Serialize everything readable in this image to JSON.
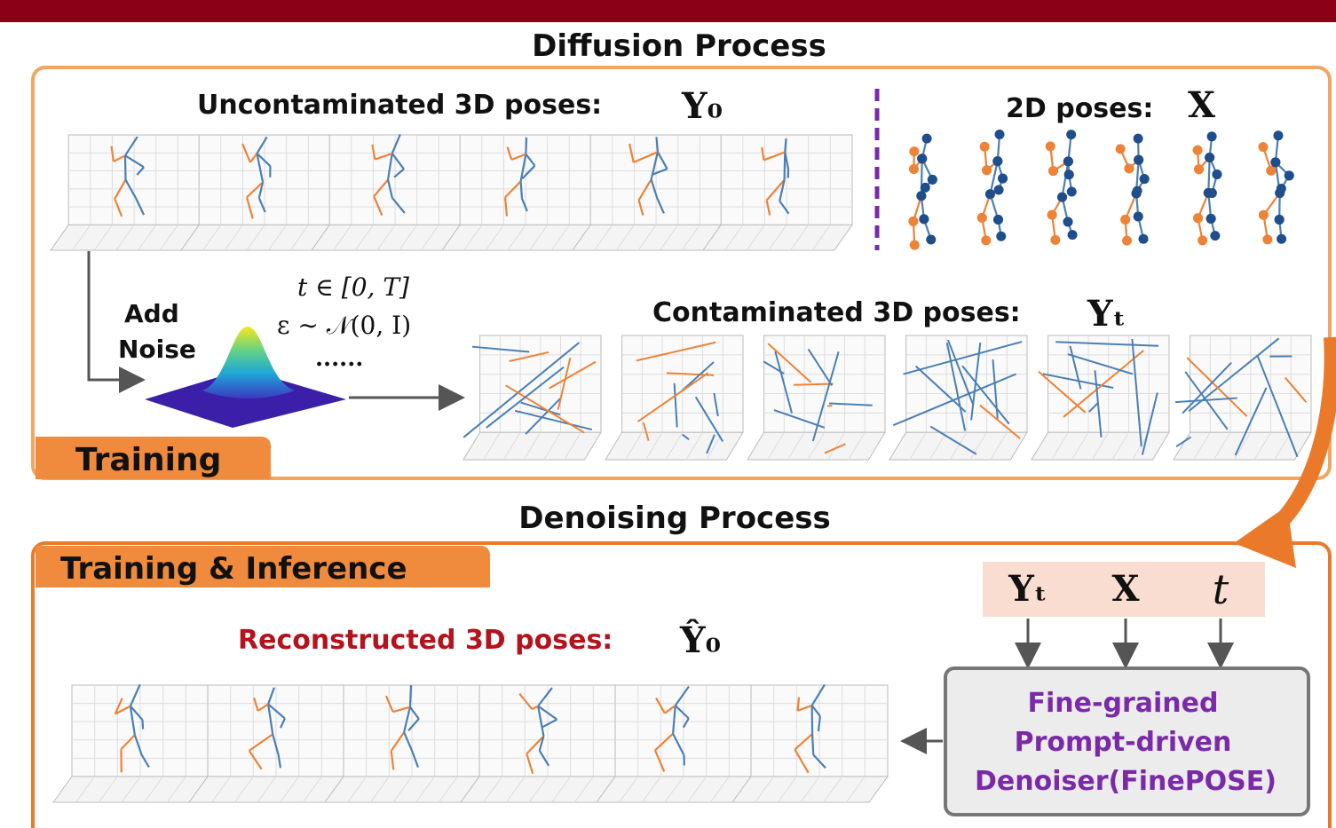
{
  "diffusion": {
    "title": "Diffusion Process",
    "uncontaminated_label": "Uncontaminated 3D poses:",
    "uncontaminated_symbol": "Y₀",
    "poses_2d_label": "2D poses:",
    "poses_2d_symbol": "X",
    "add_noise": [
      "Add",
      "Noise"
    ],
    "time_range": "t ∈ [0, T]",
    "noise_dist": "ε ∼ 𝒩(0, I)",
    "ellipsis": "......",
    "contaminated_label": "Contaminated 3D poses:",
    "contaminated_symbol": "Yₜ",
    "tab": "Training"
  },
  "denoising": {
    "title": "Denoising Process",
    "tab": "Training & Inference",
    "reconstructed_label": "Reconstructed 3D poses:",
    "reconstructed_symbol": "Ŷ₀",
    "inputs": [
      "Yₜ",
      "X",
      "t"
    ],
    "denoiser": [
      "Fine-grained",
      "Prompt-driven",
      "Denoiser(FinePOSE)"
    ]
  }
}
